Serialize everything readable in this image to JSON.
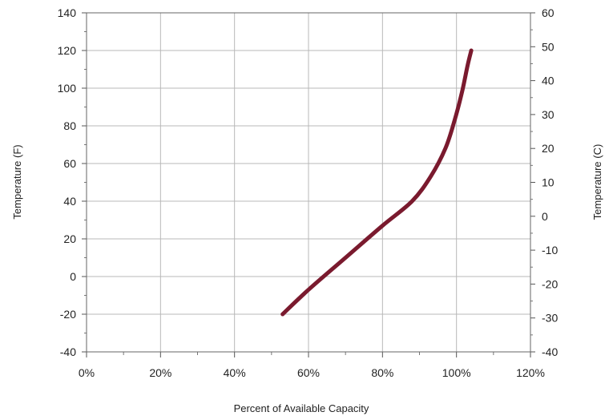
{
  "chart_data": {
    "type": "line",
    "xlabel": "Percent of Available Capacity",
    "ylabel_left": "Temperature (F)",
    "ylabel_right": "Temperature (C)",
    "xlim": [
      0,
      120
    ],
    "ylim_left": [
      -40,
      140
    ],
    "ylim_right": [
      -40,
      60
    ],
    "x_ticks": [
      "0%",
      "20%",
      "40%",
      "60%",
      "80%",
      "100%",
      "120%"
    ],
    "y_ticks_left": [
      "140",
      "120",
      "100",
      "80",
      "60",
      "40",
      "20",
      "0",
      "-20",
      "-40"
    ],
    "y_ticks_right": [
      "60",
      "50",
      "40",
      "30",
      "20",
      "10",
      "0",
      "-10",
      "-20",
      "-30",
      "-40"
    ],
    "grid": true,
    "series": [
      {
        "color": "#7a1a2e",
        "x": [
          53,
          60,
          70,
          80,
          88,
          93,
          97,
          99.5,
          101.5,
          103,
          104
        ],
        "y": [
          -20,
          -7,
          10,
          27,
          40,
          53,
          68,
          83,
          98,
          112,
          120
        ]
      }
    ]
  }
}
